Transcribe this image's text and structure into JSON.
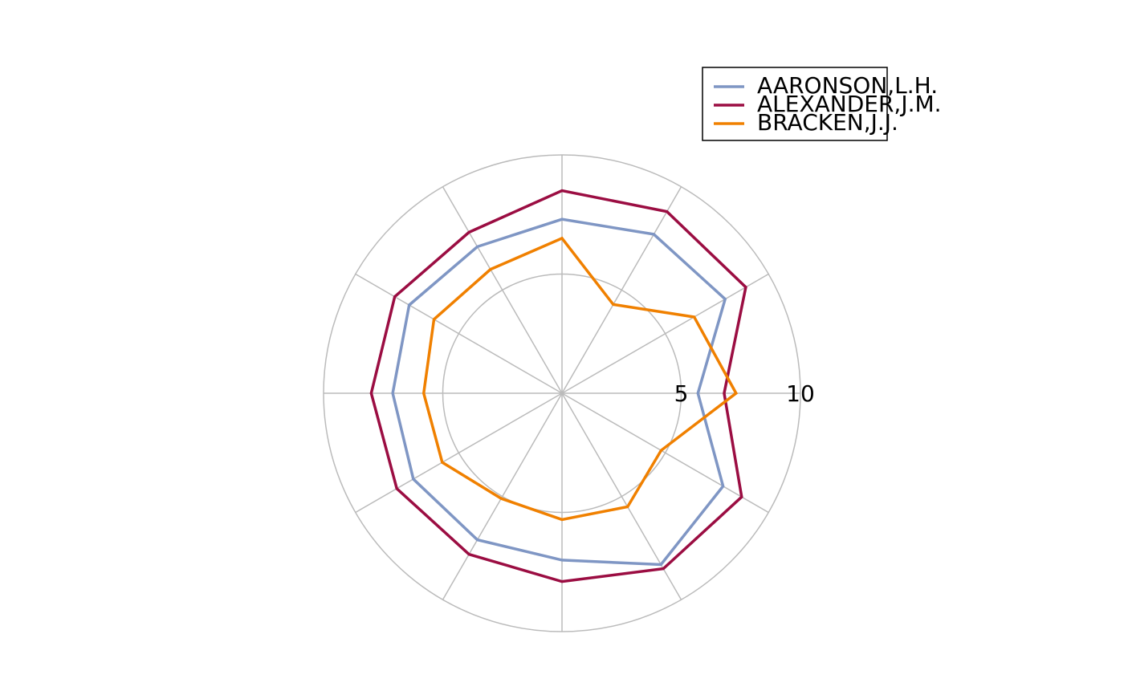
{
  "chart_data": {
    "type": "radar",
    "categories": [
      null,
      null,
      null,
      null,
      null,
      null,
      null,
      null,
      null,
      null,
      null,
      null
    ],
    "rlim": [
      0,
      10
    ],
    "rticks": [
      5,
      10
    ],
    "grid": true,
    "legend": "top-right",
    "series": [
      {
        "name": "AARONSON,L.H.",
        "color": "#7f96c4",
        "values": [
          5.7,
          7.9,
          7.7,
          7.3,
          7.1,
          7.4,
          7.1,
          7.2,
          7.1,
          7.0,
          8.3,
          7.8
        ]
      },
      {
        "name": "ALEXANDER,J.M.",
        "color": "#9b0d42",
        "values": [
          6.8,
          8.9,
          8.8,
          8.5,
          7.8,
          8.1,
          8.0,
          8.0,
          7.8,
          7.9,
          8.5,
          8.7
        ]
      },
      {
        "name": "BRACKEN,J.J.",
        "color": "#f08000",
        "values": [
          7.3,
          6.4,
          4.3,
          6.5,
          6.0,
          6.2,
          5.8,
          5.8,
          5.1,
          5.3,
          5.5,
          4.8
        ]
      }
    ]
  }
}
